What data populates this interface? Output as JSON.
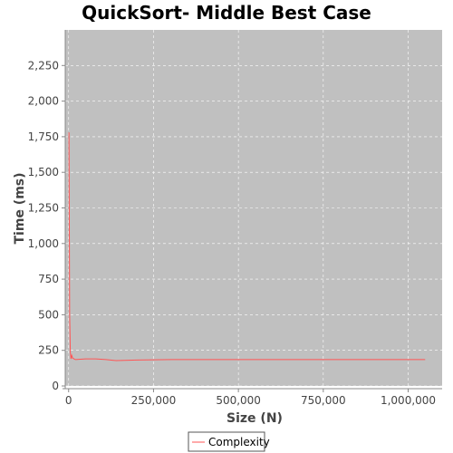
{
  "chart_data": {
    "type": "line",
    "title": "QuickSort- Middle Best Case",
    "xlabel": "Size (N)",
    "ylabel": "Time (ms)",
    "xlim": [
      -10000,
      1100000
    ],
    "ylim": [
      0,
      2500
    ],
    "x_ticks": [
      0,
      250000,
      500000,
      750000,
      1000000
    ],
    "x_tick_labels": [
      "0",
      "250,000",
      "500,000",
      "750,000",
      "1,000,000"
    ],
    "y_ticks": [
      0,
      250,
      500,
      750,
      1000,
      1250,
      1500,
      1750,
      2000,
      2250
    ],
    "y_tick_labels": [
      "0",
      "250",
      "500",
      "750",
      "1,000",
      "1,250",
      "1,500",
      "1,750",
      "2,000",
      "2,250"
    ],
    "grid": true,
    "legend_position": "bottom-center",
    "colors": {
      "plot_background": "#c0c0c0",
      "series": "#ff5555",
      "grid": "#ffffff"
    },
    "series": [
      {
        "name": "Complexity",
        "x": [
          1000,
          3000,
          5000,
          7000,
          9000,
          12000,
          20000,
          50000,
          80000,
          110000,
          140000,
          200000,
          300000,
          500000,
          750000,
          1000000,
          1050000
        ],
        "y": [
          1780,
          500,
          235,
          190,
          215,
          195,
          185,
          190,
          190,
          185,
          178,
          182,
          185,
          185,
          185,
          185,
          185
        ]
      }
    ]
  }
}
